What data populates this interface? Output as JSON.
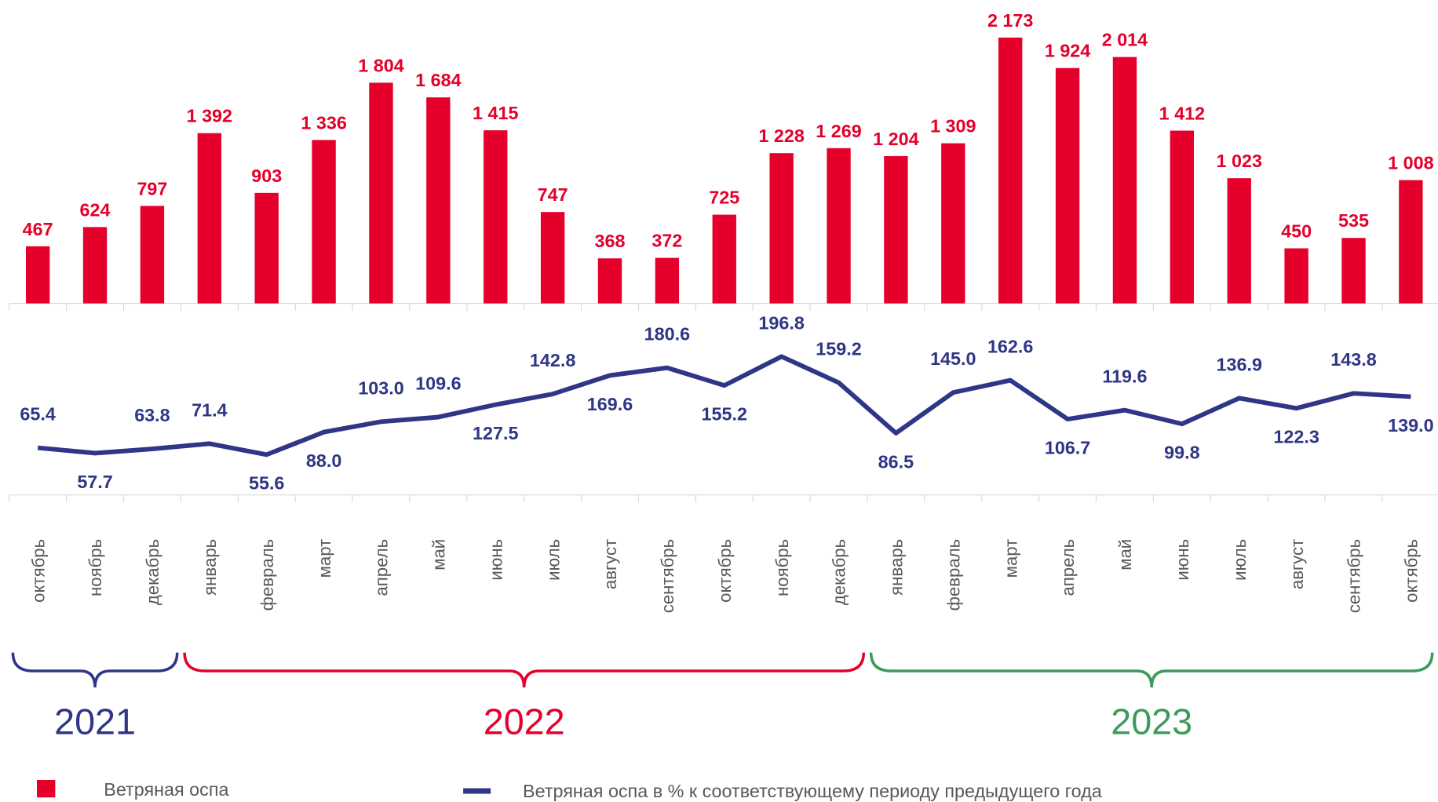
{
  "chart_data": {
    "type": "bar",
    "categories": [
      "октябрь",
      "ноябрь",
      "декабрь",
      "январь",
      "февраль",
      "март",
      "апрель",
      "май",
      "июнь",
      "июль",
      "август",
      "сентябрь",
      "октябрь",
      "ноябрь",
      "декабрь",
      "январь",
      "февраль",
      "март",
      "апрель",
      "май",
      "июнь",
      "июль",
      "август",
      "сентябрь",
      "октябрь"
    ],
    "series": [
      {
        "name": "Ветряная оспа",
        "type": "bar",
        "color": "#e4002b",
        "values": [
          467,
          624,
          797,
          1392,
          903,
          1336,
          1804,
          1684,
          1415,
          747,
          368,
          372,
          725,
          1228,
          1269,
          1204,
          1309,
          2173,
          1924,
          2014,
          1412,
          1023,
          450,
          535,
          1008
        ],
        "value_labels": [
          "467",
          "624",
          "797",
          "1 392",
          "903",
          "1 336",
          "1 804",
          "1 684",
          "1 415",
          "747",
          "368",
          "372",
          "725",
          "1 228",
          "1 269",
          "1 204",
          "1 309",
          "2 173",
          "1 924",
          "2 014",
          "1 412",
          "1 023",
          "450",
          "535",
          "1 008"
        ]
      },
      {
        "name": "Ветряная оспа в % к соответствующему периоду предыдущего года",
        "type": "line",
        "color": "#2e3685",
        "values": [
          65.4,
          57.7,
          63.8,
          71.4,
          55.6,
          88.0,
          103.0,
          109.6,
          127.5,
          142.8,
          169.6,
          180.6,
          155.2,
          196.8,
          159.2,
          86.5,
          145.0,
          162.6,
          106.7,
          119.6,
          99.8,
          136.9,
          122.3,
          143.8,
          139.0
        ],
        "value_labels": [
          "65.4",
          "57.7",
          "63.8",
          "71.4",
          "55.6",
          "88.0",
          "103.0",
          "109.6",
          "127.5",
          "142.8",
          "169.6",
          "180.6",
          "155.2",
          "196.8",
          "159.2",
          "86.5",
          "145.0",
          "162.6",
          "106.7",
          "119.6",
          "99.8",
          "136.9",
          "122.3",
          "143.8",
          "139.0"
        ]
      }
    ],
    "groups": [
      {
        "label": "2021",
        "months": 3,
        "color": "#2e3685"
      },
      {
        "label": "2022",
        "months": 12,
        "color": "#e4002b"
      },
      {
        "label": "2023",
        "months": 10,
        "color": "#3d9a5b"
      }
    ]
  }
}
